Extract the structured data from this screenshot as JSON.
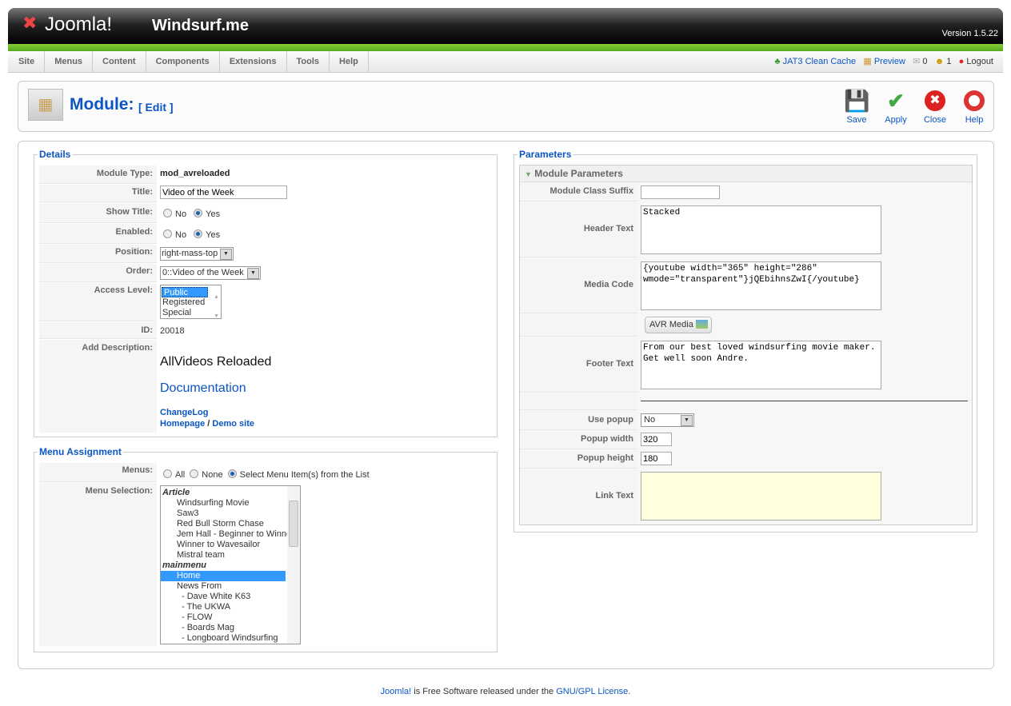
{
  "header": {
    "logo": "Joomla!",
    "site_name": "Windsurf.me",
    "version": "Version 1.5.22"
  },
  "menu": [
    "Site",
    "Menus",
    "Content",
    "Components",
    "Extensions",
    "Tools",
    "Help"
  ],
  "status": {
    "cache": "JAT3 Clean Cache",
    "preview": "Preview",
    "messages": "0",
    "users": "1",
    "logout": "Logout"
  },
  "toolbar": {
    "title": "Module:",
    "subtitle": "[ Edit ]",
    "save": "Save",
    "apply": "Apply",
    "close": "Close",
    "help": "Help"
  },
  "details": {
    "legend": "Details",
    "module_type_label": "Module Type:",
    "module_type": "mod_avreloaded",
    "title_label": "Title:",
    "title": "Video of the Week",
    "show_title_label": "Show Title:",
    "enabled_label": "Enabled:",
    "no": "No",
    "yes": "Yes",
    "position_label": "Position:",
    "position": "right-mass-top",
    "order_label": "Order:",
    "order": "0::Video of the Week",
    "access_label": "Access Level:",
    "access_options": [
      "Public",
      "Registered",
      "Special"
    ],
    "access_selected": "Public",
    "id_label": "ID:",
    "id": "20018",
    "desc_label": "Add Description:",
    "desc_title": "AllVideos Reloaded",
    "desc_doc": "Documentation",
    "desc_changelog": "ChangeLog",
    "desc_homepage": "Homepage",
    "desc_sep": " / ",
    "desc_demo": "Demo site"
  },
  "menu_assignment": {
    "legend": "Menu Assignment",
    "menus_label": "Menus:",
    "all": "All",
    "none": "None",
    "select": "Select Menu Item(s) from the List",
    "selection_label": "Menu Selection:",
    "items": [
      "Article",
      "Windsurfing Movie",
      "Saw3",
      "Red Bull Storm Chase",
      "Jem Hall - Beginner to Winner",
      "Winner to Wavesailor",
      "Mistral team",
      "mainmenu",
      "Home",
      "News From",
      "- Dave White K63",
      "- The UKWA",
      "- FLOW",
      "- Boards Mag",
      "- Longboard Windsurfing"
    ],
    "selected": "Home"
  },
  "parameters": {
    "legend": "Parameters",
    "section": "Module Parameters",
    "suffix_label": "Module Class Suffix",
    "suffix": "",
    "header_label": "Header Text",
    "header": "Stacked",
    "media_label": "Media Code",
    "media": "{youtube width=\"365\" height=\"286\" wmode=\"transparent\"}jQEbihnsZwI{/youtube}",
    "avr_button": "AVR Media",
    "footer_label": "Footer Text",
    "footer": "From our best loved windsurfing movie maker. Get well soon Andre.",
    "popup_label": "Use popup",
    "popup": "No",
    "width_label": "Popup width",
    "width": "320",
    "height_label": "Popup height",
    "height": "180",
    "link_label": "Link Text",
    "link": ""
  },
  "footer": {
    "joomla": "Joomla!",
    "text": " is Free Software released under the ",
    "license": "GNU/GPL License",
    "end": "."
  }
}
